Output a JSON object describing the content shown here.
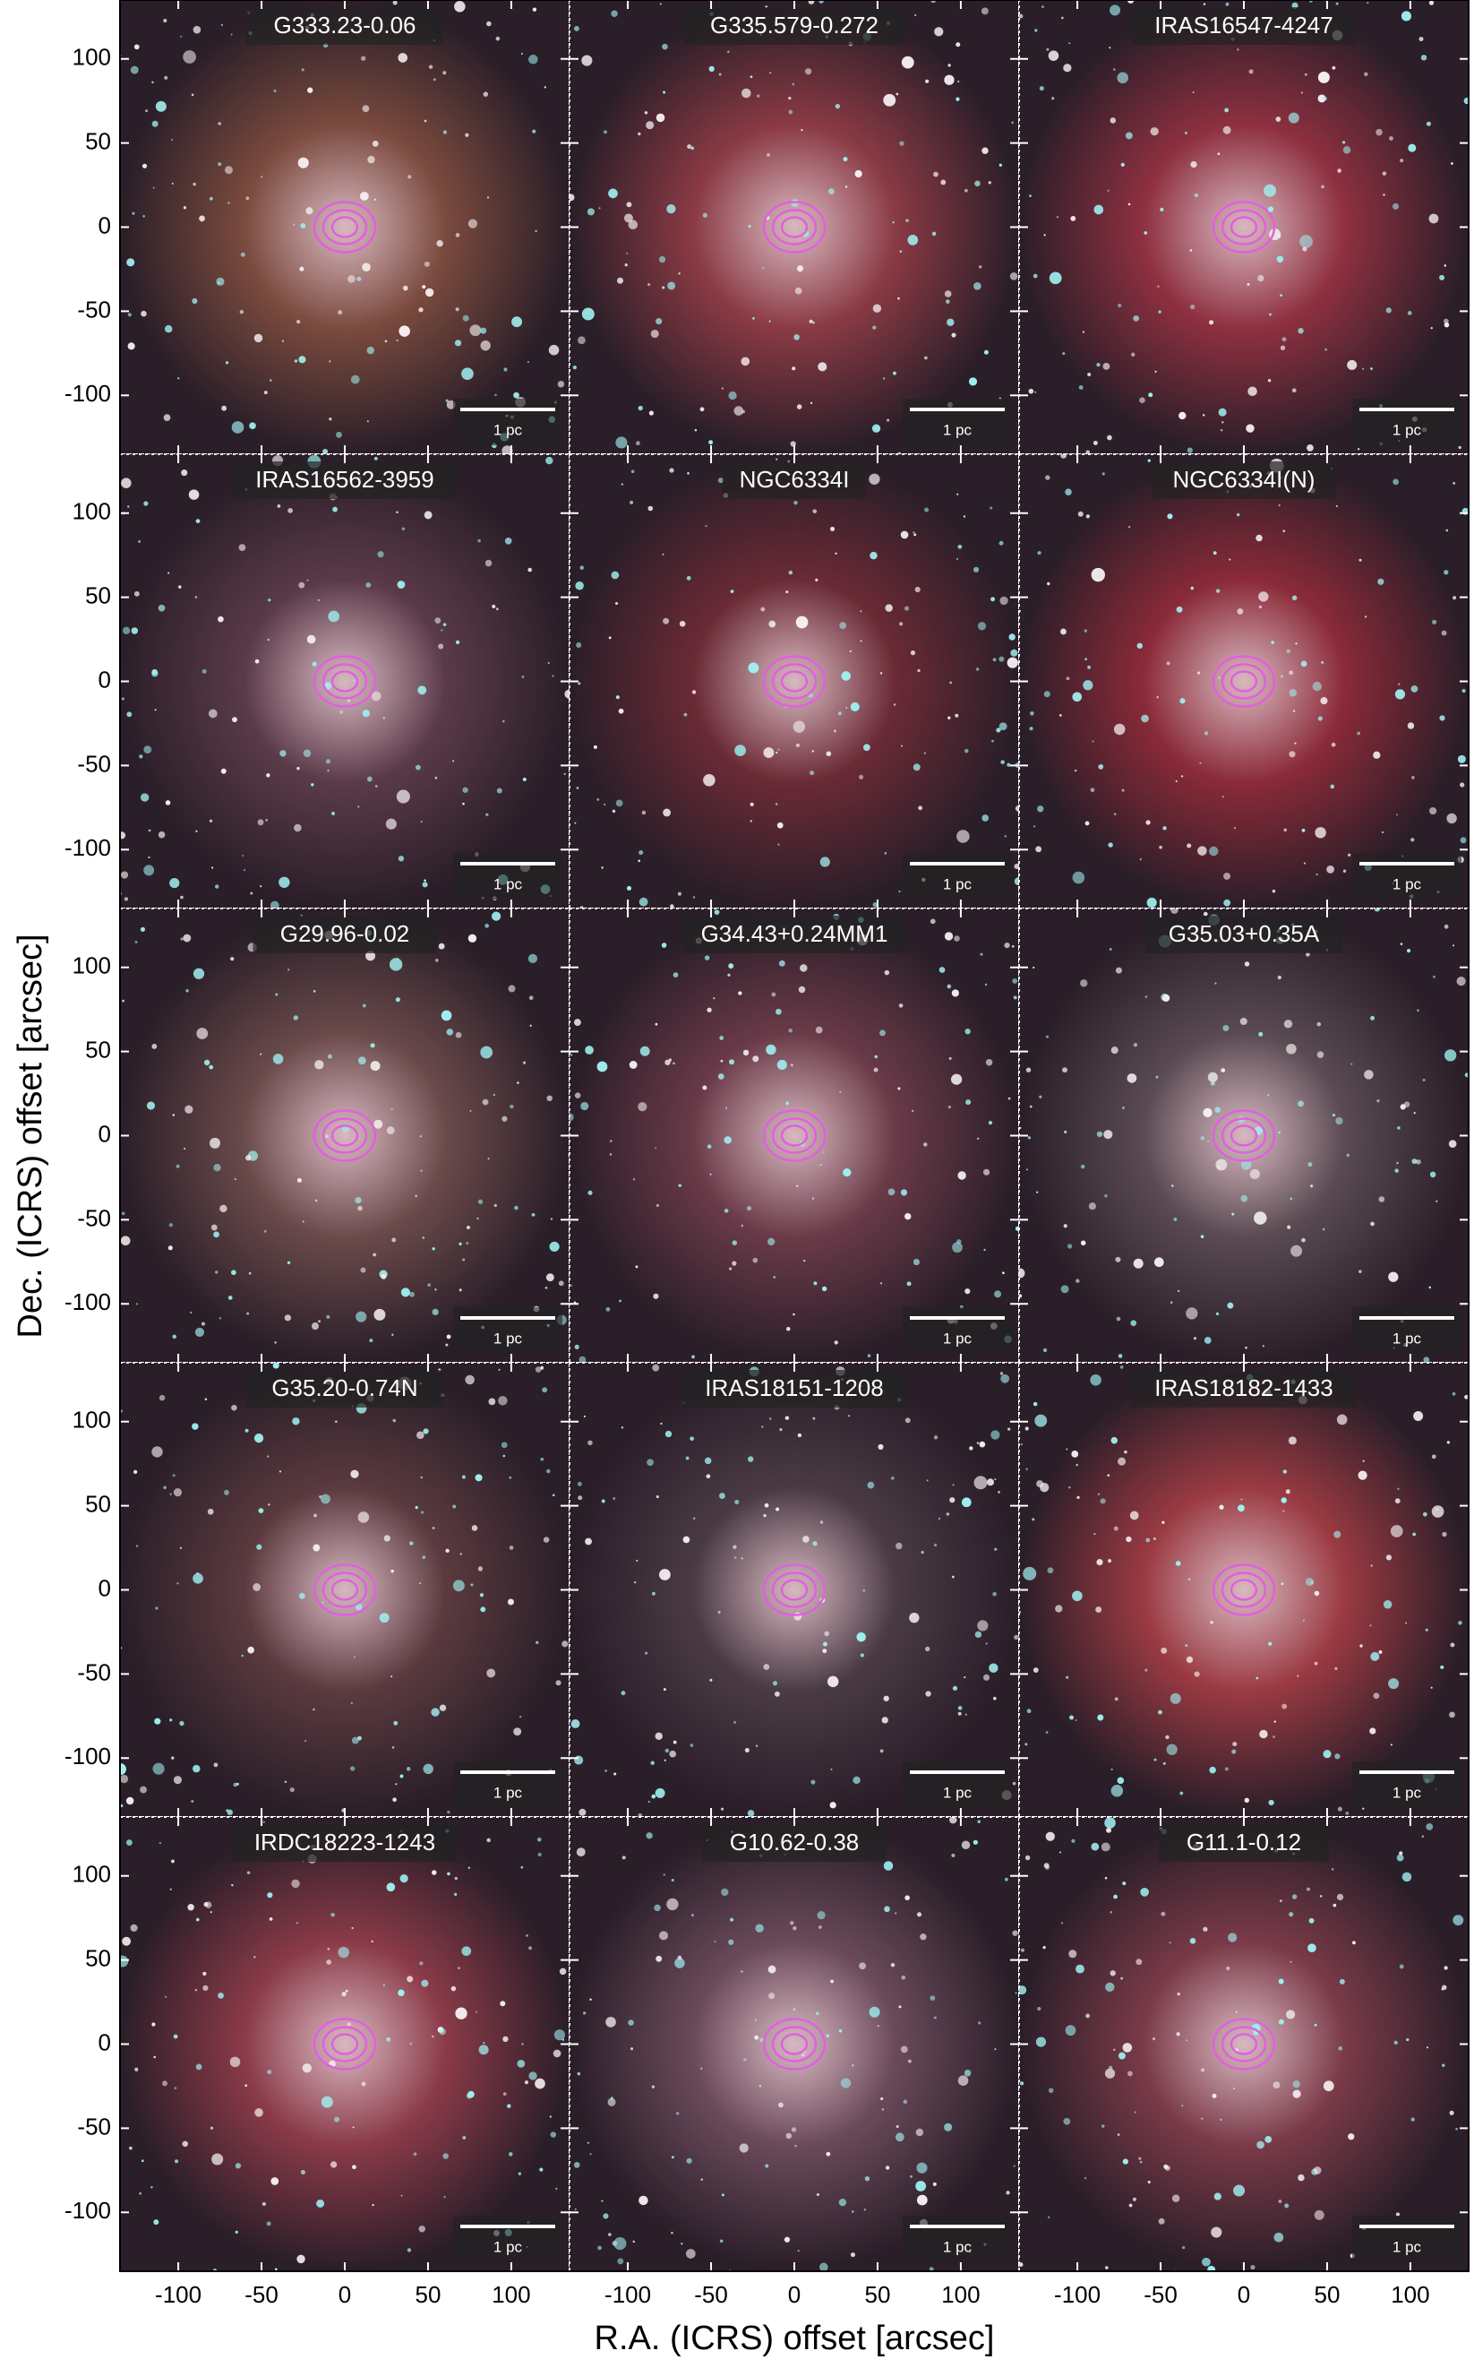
{
  "figure": {
    "xlabel": "R.A. (ICRS) offset [arcsec]",
    "ylabel": "Dec. (ICRS) offset [arcsec]",
    "xlim": [
      -135,
      135
    ],
    "ylim": [
      -135,
      135
    ],
    "xticks": [
      -100,
      -50,
      0,
      50,
      100
    ],
    "yticks": [
      -100,
      -50,
      0,
      50,
      100
    ],
    "panels": [
      {
        "title": "G333.23-0.06",
        "scale_label": "1 pc"
      },
      {
        "title": "G335.579-0.272",
        "scale_label": "1 pc"
      },
      {
        "title": "IRAS16547-4247",
        "scale_label": "1 pc"
      },
      {
        "title": "IRAS16562-3959",
        "scale_label": "1 pc"
      },
      {
        "title": "NGC6334I",
        "scale_label": "1 pc"
      },
      {
        "title": "NGC6334I(N)",
        "scale_label": "1 pc"
      },
      {
        "title": "G29.96-0.02",
        "scale_label": "1 pc"
      },
      {
        "title": "G34.43+0.24MM1",
        "scale_label": "1 pc"
      },
      {
        "title": "G35.03+0.35A",
        "scale_label": "1 pc"
      },
      {
        "title": "G35.20-0.74N",
        "scale_label": "1 pc"
      },
      {
        "title": "IRAS18151-1208",
        "scale_label": "1 pc"
      },
      {
        "title": "IRAS18182-1433",
        "scale_label": "1 pc"
      },
      {
        "title": "IRDC18223-1243",
        "scale_label": "1 pc"
      },
      {
        "title": "G10.62-0.38",
        "scale_label": "1 pc"
      },
      {
        "title": "G11.1-0.12",
        "scale_label": "1 pc"
      }
    ]
  }
}
